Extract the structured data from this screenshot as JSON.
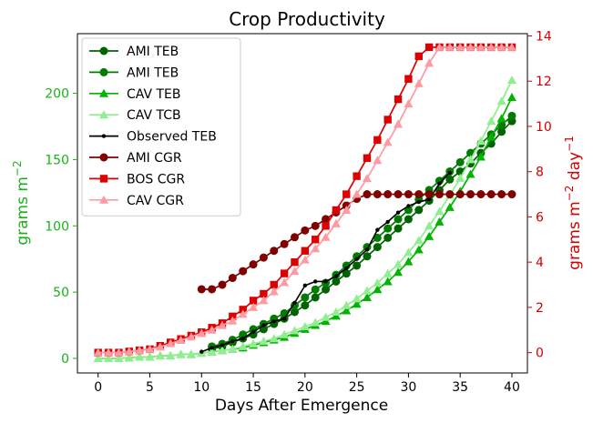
{
  "chart_data": {
    "type": "line",
    "title": "Crop Productivity",
    "xlabel": "Days After Emergence",
    "ylabel_left": "grams m",
    "ylabel_left_sup": "−2",
    "ylabel_right_pre": "grams m",
    "ylabel_right_sup1": "−2",
    "ylabel_right_mid": " day",
    "ylabel_right_sup2": "−1",
    "xlim": [
      -2,
      41.5
    ],
    "ylim_left": [
      -11,
      245
    ],
    "ylim_right": [
      -0.9,
      14.1
    ],
    "x_ticks": [
      0,
      5,
      10,
      15,
      20,
      25,
      30,
      35,
      40
    ],
    "y_ticks_left": [
      0,
      50,
      100,
      150,
      200
    ],
    "y_ticks_right": [
      0,
      2,
      4,
      6,
      8,
      10,
      12,
      14
    ],
    "left_axis_color": "#19b219",
    "right_axis_color": "#d40000",
    "legend_position": "upper-left",
    "series": [
      {
        "name": "AMI TEB",
        "axis": "left",
        "color": "#006400",
        "marker": "circle",
        "x": [
          11,
          12,
          13,
          14,
          15,
          16,
          17,
          18,
          19,
          20,
          21,
          22,
          23,
          24,
          25,
          26,
          27,
          28,
          29,
          30,
          31,
          32,
          33,
          34,
          35,
          36,
          37,
          38,
          39,
          40
        ],
        "y": [
          7,
          9,
          12,
          15,
          18,
          22,
          26,
          30,
          35,
          40,
          46,
          52,
          58,
          64,
          70,
          77,
          84,
          91,
          98,
          105,
          112,
          119,
          127,
          135,
          141,
          147,
          155,
          162,
          171,
          179
        ]
      },
      {
        "name": "AMI TEB",
        "axis": "left",
        "color": "#007c00",
        "marker": "circle",
        "x": [
          11,
          12,
          13,
          14,
          15,
          16,
          17,
          18,
          19,
          20,
          21,
          22,
          23,
          24,
          25,
          26,
          27,
          28,
          29,
          30,
          31,
          32,
          33,
          34,
          35,
          36,
          37,
          38,
          39,
          40
        ],
        "y": [
          9,
          11,
          14,
          18,
          22,
          26,
          30,
          34,
          40,
          46,
          52,
          57,
          63,
          70,
          77,
          84,
          91,
          98,
          105,
          112,
          120,
          127,
          134,
          141,
          148,
          155,
          162,
          169,
          176,
          183
        ]
      },
      {
        "name": "CAV TEB",
        "axis": "left",
        "color": "#00b400",
        "marker": "triangle",
        "x": [
          0,
          1,
          2,
          3,
          4,
          5,
          6,
          7,
          8,
          9,
          10,
          11,
          12,
          13,
          14,
          15,
          16,
          17,
          18,
          19,
          20,
          21,
          22,
          23,
          24,
          25,
          26,
          27,
          28,
          29,
          30,
          31,
          32,
          33,
          34,
          35,
          36,
          37,
          38,
          39,
          40
        ],
        "y": [
          0,
          0,
          0,
          0.5,
          1,
          1,
          2,
          2,
          3,
          3,
          4,
          5,
          6,
          7,
          8,
          10,
          12,
          14,
          16,
          19,
          22,
          25,
          28,
          32,
          36,
          41,
          46,
          52,
          58,
          65,
          73,
          82,
          92,
          103,
          114,
          126,
          139,
          152,
          167,
          181,
          197
        ]
      },
      {
        "name": "CAV TCB",
        "axis": "left",
        "color": "#90ee90",
        "marker": "triangle",
        "x": [
          0,
          1,
          2,
          3,
          4,
          5,
          6,
          7,
          8,
          9,
          10,
          11,
          12,
          13,
          14,
          15,
          16,
          17,
          18,
          19,
          20,
          21,
          22,
          23,
          24,
          25,
          26,
          27,
          28,
          29,
          30,
          31,
          32,
          33,
          34,
          35,
          36,
          37,
          38,
          39,
          40
        ],
        "y": [
          0,
          0,
          0,
          0.5,
          1,
          1,
          2,
          2,
          3,
          3,
          4,
          5,
          6,
          7,
          9,
          11,
          13,
          15,
          18,
          21,
          24,
          27,
          31,
          35,
          40,
          45,
          51,
          57,
          64,
          71,
          80,
          89,
          100,
          111,
          123,
          136,
          150,
          164,
          179,
          194,
          210
        ]
      },
      {
        "name": "Observed TEB",
        "axis": "left",
        "color": "#000000",
        "marker": "dot",
        "x": [
          10,
          11,
          12,
          13,
          14,
          15,
          16,
          17,
          18,
          19,
          20,
          21,
          22,
          23,
          24,
          25,
          26,
          27,
          28,
          29,
          30,
          31,
          32,
          33,
          34
        ],
        "y": [
          5,
          8,
          10,
          13,
          15,
          20,
          25,
          28,
          30,
          42,
          55,
          58,
          58,
          62,
          68,
          75,
          82,
          97,
          103,
          110,
          115,
          118,
          120,
          132,
          140
        ]
      },
      {
        "name": "AMI CGR",
        "axis": "right",
        "color": "#800000",
        "marker": "circle",
        "x": [
          10,
          11,
          12,
          13,
          14,
          15,
          16,
          17,
          18,
          19,
          20,
          21,
          22,
          23,
          24,
          25,
          26,
          27,
          28,
          29,
          30,
          31,
          32,
          33,
          34,
          35,
          36,
          37,
          38,
          39,
          40
        ],
        "y": [
          2.8,
          2.8,
          3.0,
          3.3,
          3.6,
          3.9,
          4.2,
          4.5,
          4.8,
          5.1,
          5.4,
          5.6,
          5.9,
          6.2,
          6.5,
          6.8,
          7.0,
          7.0,
          7.0,
          7.0,
          7.0,
          7.0,
          7.0,
          7.0,
          7.0,
          7.0,
          7.0,
          7.0,
          7.0,
          7.0,
          7.0
        ]
      },
      {
        "name": "BOS CGR",
        "axis": "right",
        "color": "#dd0000",
        "marker": "square",
        "x": [
          0,
          1,
          2,
          3,
          4,
          5,
          6,
          7,
          8,
          9,
          10,
          11,
          12,
          13,
          14,
          15,
          16,
          17,
          18,
          19,
          20,
          21,
          22,
          23,
          24,
          25,
          26,
          27,
          28,
          29,
          30,
          31,
          32,
          33,
          34,
          35,
          36,
          37,
          38,
          39,
          40
        ],
        "y": [
          0,
          0,
          0,
          0.05,
          0.1,
          0.15,
          0.3,
          0.45,
          0.6,
          0.75,
          0.9,
          1.1,
          1.3,
          1.6,
          1.9,
          2.3,
          2.6,
          3.0,
          3.5,
          4.0,
          4.5,
          5.0,
          5.6,
          6.3,
          7.0,
          7.8,
          8.6,
          9.4,
          10.3,
          11.2,
          12.1,
          13.1,
          13.5,
          13.5,
          13.5,
          13.5,
          13.5,
          13.5,
          13.5,
          13.5,
          13.5
        ]
      },
      {
        "name": "CAV CGR",
        "axis": "right",
        "color": "#ff9aa2",
        "marker": "triangle",
        "x": [
          0,
          1,
          2,
          3,
          4,
          5,
          6,
          7,
          8,
          9,
          10,
          11,
          12,
          13,
          14,
          15,
          16,
          17,
          18,
          19,
          20,
          21,
          22,
          23,
          24,
          25,
          26,
          27,
          28,
          29,
          30,
          31,
          32,
          33,
          34,
          35,
          36,
          37,
          38,
          39,
          40
        ],
        "y": [
          0,
          0,
          0,
          0.05,
          0.1,
          0.15,
          0.25,
          0.4,
          0.55,
          0.7,
          0.85,
          1.0,
          1.2,
          1.4,
          1.7,
          2.0,
          2.3,
          2.7,
          3.1,
          3.6,
          4.1,
          4.6,
          5.1,
          5.7,
          6.3,
          7.0,
          7.7,
          8.5,
          9.3,
          10.1,
          11.0,
          11.9,
          12.8,
          13.5,
          13.5,
          13.5,
          13.5,
          13.5,
          13.5,
          13.5,
          13.5
        ]
      }
    ]
  }
}
